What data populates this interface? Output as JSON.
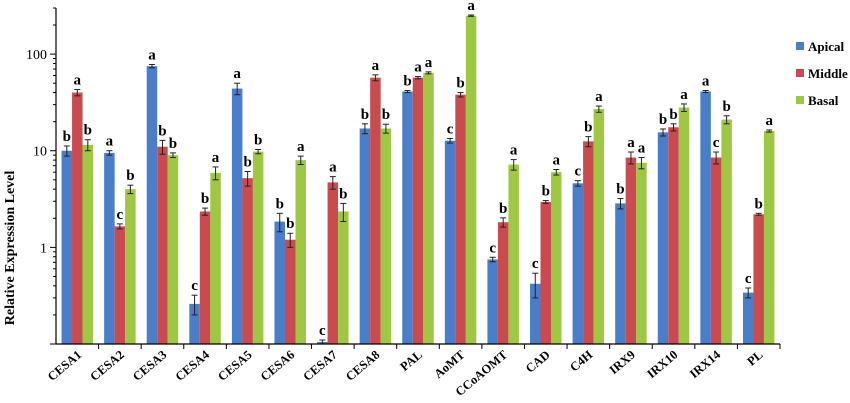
{
  "chart_data": {
    "type": "bar",
    "ylabel": "Relative Expression Level",
    "yscale": "log",
    "ylim": [
      0.1,
      300
    ],
    "yticks": [
      {
        "value": 1,
        "label": "1"
      },
      {
        "value": 10,
        "label": "10"
      },
      {
        "value": 100,
        "label": "100"
      }
    ],
    "legend_position": "right",
    "categories": [
      "CESA1",
      "CESA2",
      "CESA3",
      "CESA4",
      "CESA5",
      "CESA6",
      "CESA7",
      "CESA8",
      "PAL",
      "AoMT",
      "CCoAOMT",
      "CAD",
      "C4H",
      "IRX9",
      "IRX10",
      "IRX14",
      "PL"
    ],
    "series": [
      {
        "name": "Apical",
        "color": "#4a7ec9",
        "values": [
          10,
          9.5,
          75,
          0.26,
          44,
          1.85,
          0.105,
          17,
          41,
          12.7,
          0.75,
          0.42,
          4.6,
          2.85,
          15.5,
          41,
          0.34
        ],
        "errors": [
          1.2,
          0.5,
          3,
          0.06,
          6,
          0.4,
          0.005,
          2,
          1,
          0.7,
          0.04,
          0.12,
          0.3,
          0.35,
          1.3,
          1,
          0.04
        ],
        "labels": [
          "b",
          "a",
          "a",
          "c",
          "a",
          "b",
          "c",
          "b",
          "b",
          "c",
          "c",
          "c",
          "c",
          "b",
          "b",
          "a",
          "c"
        ]
      },
      {
        "name": "Middle",
        "color": "#c94a4f",
        "values": [
          40,
          1.65,
          11,
          2.35,
          5.2,
          1.2,
          4.7,
          57,
          57,
          38,
          1.82,
          2.95,
          12.5,
          8.5,
          17.5,
          8.5,
          2.2
        ],
        "errors": [
          3,
          0.1,
          1.8,
          0.2,
          0.9,
          0.2,
          0.7,
          4,
          1.5,
          2,
          0.2,
          0.1,
          1.5,
          1.2,
          1.5,
          1.2,
          0.05
        ],
        "labels": [
          "a",
          "c",
          "b",
          "b",
          "b",
          "b",
          "a",
          "a",
          "a",
          "b",
          "b",
          "b",
          "b",
          "a",
          "b",
          "c",
          "b"
        ]
      },
      {
        "name": "Basal",
        "color": "#9ec843",
        "values": [
          11.5,
          4,
          9,
          5.9,
          9.8,
          8,
          2.35,
          17,
          64,
          250,
          7.2,
          6,
          27,
          7.5,
          28,
          21,
          16
        ],
        "errors": [
          1.5,
          0.4,
          0.5,
          0.9,
          0.5,
          0.8,
          0.5,
          1.8,
          1.5,
          4,
          0.9,
          0.4,
          2,
          1,
          2.5,
          2,
          0.4
        ],
        "labels": [
          "b",
          "b",
          "b",
          "a",
          "b",
          "a",
          "b",
          "b",
          "a",
          "a",
          "a",
          "a",
          "a",
          "a",
          "a",
          "b",
          "a"
        ]
      }
    ]
  }
}
